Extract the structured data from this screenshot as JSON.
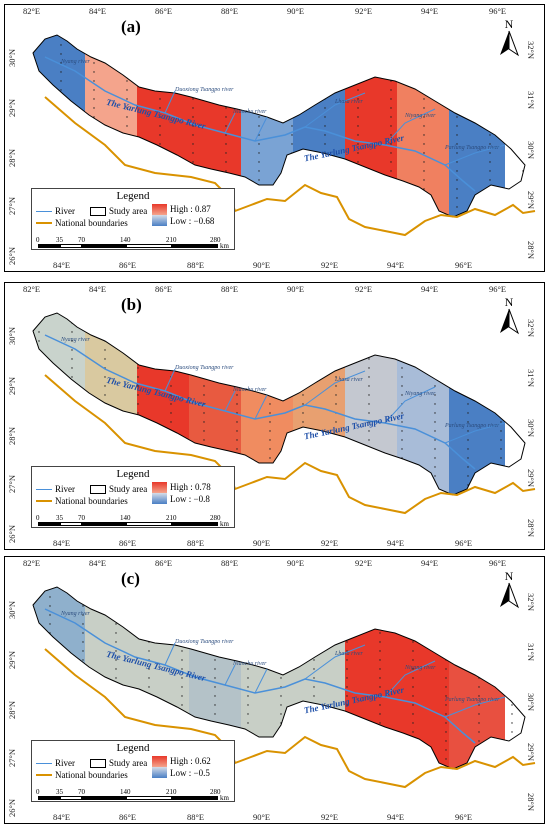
{
  "top_ticks": [
    "82°E",
    "84°E",
    "86°E",
    "88°E",
    "90°E",
    "92°E",
    "94°E",
    "96°E"
  ],
  "bottom_ticks": [
    "84°E",
    "86°E",
    "88°E",
    "90°E",
    "92°E",
    "94°E",
    "96°E"
  ],
  "left_ticks": [
    "30°N",
    "29°N",
    "28°N",
    "27°N",
    "26°N"
  ],
  "right_ticks": [
    "32°N",
    "31°N",
    "30°N",
    "29°N",
    "28°N"
  ],
  "north_label": "N",
  "legend": {
    "title": "Legend",
    "river": "River",
    "study_area": "Study area",
    "national_boundaries": "National boundaries",
    "scale_labels": [
      "0",
      "35",
      "70",
      "140",
      "210",
      "280"
    ],
    "scale_unit": "km"
  },
  "river_main_label": "The Yarlung Tsangpo River",
  "sub_rivers": [
    "Duoxiong Tsangpo river",
    "Nianchu river",
    "Lhasa river",
    "Niyang river",
    "Parlung Tsangpo river",
    "Nyang river"
  ],
  "panels": [
    {
      "label": "(a)",
      "high": "High : 0.87",
      "low": "Low : −0.68"
    },
    {
      "label": "(b)",
      "high": "High : 0.78",
      "low": "Low : −0.8"
    },
    {
      "label": "(c)",
      "high": "High : 0.62",
      "low": "Low : −0.5"
    }
  ],
  "colors": {
    "high": "#e8382a",
    "mid": "#f0e6c8",
    "low": "#4a7fc4",
    "river": "#4a90d9",
    "boundary": "#d99200"
  }
}
